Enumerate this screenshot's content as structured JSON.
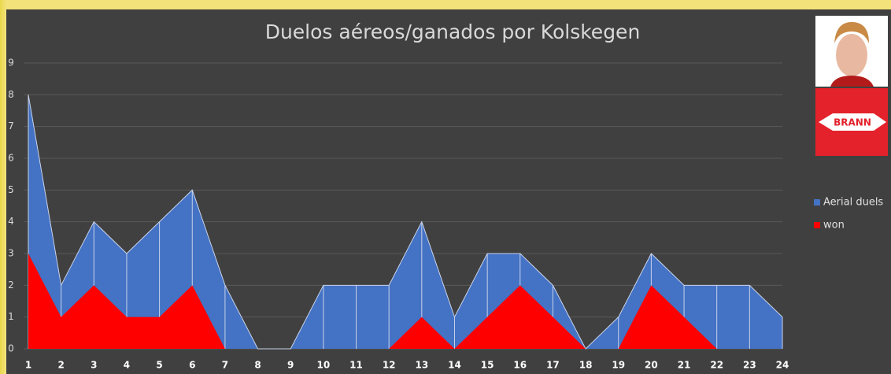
{
  "chart_data": {
    "type": "area",
    "title": "Duelos aéreos/ganados por Kolskegen",
    "x": [
      1,
      2,
      3,
      4,
      5,
      6,
      7,
      8,
      9,
      10,
      11,
      12,
      13,
      14,
      15,
      16,
      17,
      18,
      19,
      20,
      21,
      22,
      23,
      24
    ],
    "xlim": [
      1,
      24
    ],
    "xticks": [
      1,
      2,
      3,
      4,
      5,
      6,
      7,
      8,
      9,
      10,
      11,
      12,
      13,
      14,
      15,
      16,
      17,
      18,
      19,
      20,
      21,
      22,
      23,
      24
    ],
    "ylim": [
      0,
      9
    ],
    "yticks": [
      0,
      1,
      2,
      3,
      4,
      5,
      6,
      7,
      8,
      9
    ],
    "grid": true,
    "legend": "right",
    "series": [
      {
        "name": "Aerial duels",
        "color": "#4472c4",
        "values": [
          8,
          2,
          4,
          3,
          4,
          5,
          2,
          0,
          0,
          2,
          2,
          2,
          4,
          1,
          3,
          3,
          2,
          0,
          1,
          3,
          2,
          2,
          2,
          1
        ]
      },
      {
        "name": "won",
        "color": "#ff0000",
        "values": [
          3,
          1,
          2,
          1,
          1,
          2,
          0,
          0,
          0,
          0,
          0,
          0,
          1,
          0,
          1,
          2,
          1,
          0,
          0,
          2,
          1,
          0,
          0,
          0
        ]
      }
    ]
  },
  "logo": {
    "text": "BRANN"
  }
}
